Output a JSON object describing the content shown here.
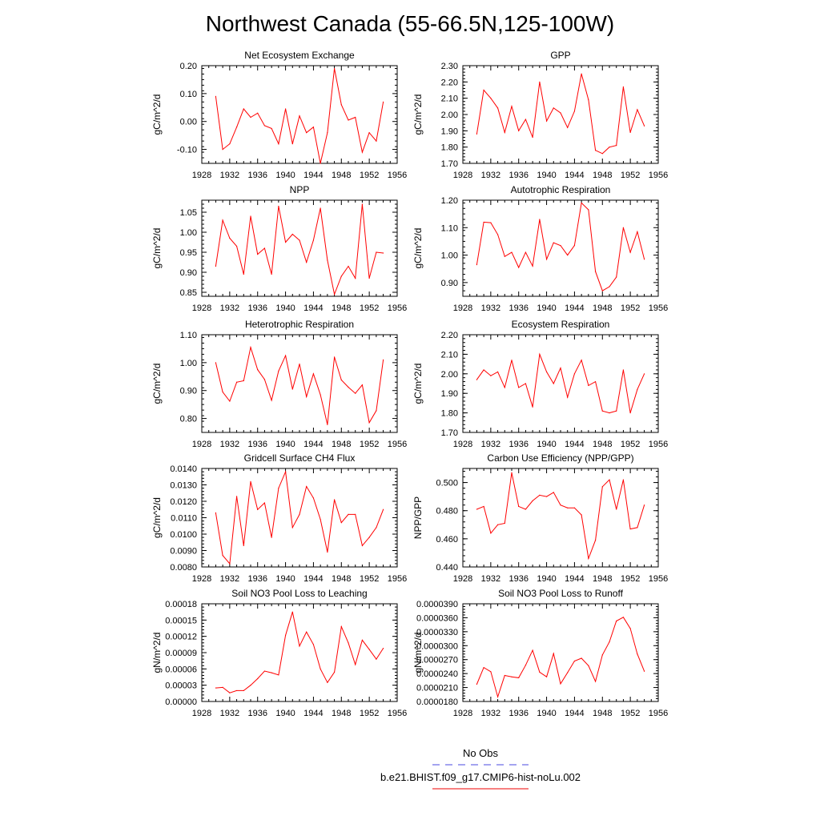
{
  "figure": {
    "title": "Northwest Canada (55-66.5N,125-100W)"
  },
  "legend": {
    "entries": [
      {
        "label": "No Obs",
        "color": "#4a4ae0",
        "dash": true
      },
      {
        "label": "b.e21.BHIST.f09_g17.CMIP6-hist-noLu.002",
        "color": "#ee0000",
        "dash": false
      }
    ]
  },
  "colors": {
    "series": "#ff0000"
  },
  "chart_data": [
    {
      "type": "line",
      "title": "Net Ecosystem Exchange",
      "ylabel": "gC/m^2/d",
      "xlim": [
        1928,
        1956
      ],
      "xticks": [
        1928,
        1932,
        1936,
        1940,
        1944,
        1948,
        1952,
        1956
      ],
      "ylim": [
        -0.15,
        0.2
      ],
      "yticks": [
        "-0.10",
        "0.00",
        "0.10",
        "0.20"
      ],
      "ytick_values": [
        -0.1,
        0.0,
        0.1,
        0.2
      ],
      "x": [
        1930,
        1931,
        1932,
        1933,
        1934,
        1935,
        1936,
        1937,
        1938,
        1939,
        1940,
        1941,
        1942,
        1943,
        1944,
        1945,
        1946,
        1947,
        1948,
        1949,
        1950,
        1951,
        1952,
        1953,
        1954
      ],
      "values": [
        0.09,
        -0.1,
        -0.08,
        -0.02,
        0.045,
        0.015,
        0.03,
        -0.015,
        -0.025,
        -0.08,
        0.045,
        -0.08,
        0.02,
        -0.04,
        -0.02,
        -0.15,
        -0.04,
        0.19,
        0.06,
        0.005,
        0.015,
        -0.11,
        -0.04,
        -0.07,
        0.07
      ]
    },
    {
      "type": "line",
      "title": "GPP",
      "ylabel": "gC/m^2/d",
      "xlim": [
        1928,
        1956
      ],
      "xticks": [
        1928,
        1932,
        1936,
        1940,
        1944,
        1948,
        1952,
        1956
      ],
      "ylim": [
        1.7,
        2.3
      ],
      "yticks": [
        "1.70",
        "1.80",
        "1.90",
        "2.00",
        "2.10",
        "2.20",
        "2.30"
      ],
      "ytick_values": [
        1.7,
        1.8,
        1.9,
        2.0,
        2.1,
        2.2,
        2.3
      ],
      "x": [
        1930,
        1931,
        1932,
        1933,
        1934,
        1935,
        1936,
        1937,
        1938,
        1939,
        1940,
        1941,
        1942,
        1943,
        1944,
        1945,
        1946,
        1947,
        1948,
        1949,
        1950,
        1951,
        1952,
        1953,
        1954
      ],
      "values": [
        1.88,
        2.15,
        2.1,
        2.04,
        1.89,
        2.05,
        1.9,
        1.97,
        1.86,
        2.2,
        1.96,
        2.04,
        2.01,
        1.92,
        2.02,
        2.25,
        2.09,
        1.78,
        1.76,
        1.8,
        1.81,
        2.17,
        1.89,
        2.03,
        1.93
      ]
    },
    {
      "type": "line",
      "title": "NPP",
      "ylabel": "gC/m^2/d",
      "xlim": [
        1928,
        1956
      ],
      "xticks": [
        1928,
        1932,
        1936,
        1940,
        1944,
        1948,
        1952,
        1956
      ],
      "ylim": [
        0.84,
        1.08
      ],
      "yticks": [
        "0.85",
        "0.90",
        "0.95",
        "1.00",
        "1.05"
      ],
      "ytick_values": [
        0.85,
        0.9,
        0.95,
        1.0,
        1.05
      ],
      "x": [
        1930,
        1931,
        1932,
        1933,
        1934,
        1935,
        1936,
        1937,
        1938,
        1939,
        1940,
        1941,
        1942,
        1943,
        1944,
        1945,
        1946,
        1947,
        1948,
        1949,
        1950,
        1951,
        1952,
        1953,
        1954
      ],
      "values": [
        0.915,
        1.03,
        0.985,
        0.965,
        0.895,
        1.04,
        0.945,
        0.96,
        0.895,
        1.065,
        0.975,
        0.995,
        0.98,
        0.925,
        0.98,
        1.06,
        0.93,
        0.845,
        0.89,
        0.915,
        0.885,
        1.07,
        0.885,
        0.95,
        0.948
      ]
    },
    {
      "type": "line",
      "title": "Autotrophic Respiration",
      "ylabel": "gC/m^2/d",
      "xlim": [
        1928,
        1956
      ],
      "xticks": [
        1928,
        1932,
        1936,
        1940,
        1944,
        1948,
        1952,
        1956
      ],
      "ylim": [
        0.85,
        1.2
      ],
      "yticks": [
        "0.90",
        "1.00",
        "1.10",
        "1.20"
      ],
      "ytick_values": [
        0.9,
        1.0,
        1.1,
        1.2
      ],
      "x": [
        1930,
        1931,
        1932,
        1933,
        1934,
        1935,
        1936,
        1937,
        1938,
        1939,
        1940,
        1941,
        1942,
        1943,
        1944,
        1945,
        1946,
        1947,
        1948,
        1949,
        1950,
        1951,
        1952,
        1953,
        1954
      ],
      "values": [
        0.965,
        1.12,
        1.118,
        1.075,
        0.995,
        1.01,
        0.955,
        1.01,
        0.96,
        1.13,
        0.985,
        1.045,
        1.035,
        1.0,
        1.035,
        1.19,
        1.165,
        0.94,
        0.87,
        0.885,
        0.92,
        1.1,
        1.01,
        1.085,
        0.985
      ]
    },
    {
      "type": "line",
      "title": "Heterotrophic Respiration",
      "ylabel": "gC/m^2/d",
      "xlim": [
        1928,
        1956
      ],
      "xticks": [
        1928,
        1932,
        1936,
        1940,
        1944,
        1948,
        1952,
        1956
      ],
      "ylim": [
        0.75,
        1.1
      ],
      "yticks": [
        "0.80",
        "0.90",
        "1.00",
        "1.10"
      ],
      "ytick_values": [
        0.8,
        0.9,
        1.0,
        1.1
      ],
      "x": [
        1930,
        1931,
        1932,
        1933,
        1934,
        1935,
        1936,
        1937,
        1938,
        1939,
        1940,
        1941,
        1942,
        1943,
        1944,
        1945,
        1946,
        1947,
        1948,
        1949,
        1950,
        1951,
        1952,
        1953,
        1954
      ],
      "values": [
        1.0,
        0.895,
        0.862,
        0.93,
        0.935,
        1.055,
        0.975,
        0.94,
        0.865,
        0.97,
        1.025,
        0.905,
        0.995,
        0.878,
        0.96,
        0.885,
        0.778,
        1.02,
        0.938,
        0.912,
        0.89,
        0.92,
        0.785,
        0.828,
        1.01
      ]
    },
    {
      "type": "line",
      "title": "Ecosystem Respiration",
      "ylabel": "gC/m^2/d",
      "xlim": [
        1928,
        1956
      ],
      "xticks": [
        1928,
        1932,
        1936,
        1940,
        1944,
        1948,
        1952,
        1956
      ],
      "ylim": [
        1.7,
        2.2
      ],
      "yticks": [
        "1.70",
        "1.80",
        "1.90",
        "2.00",
        "2.10",
        "2.20"
      ],
      "ytick_values": [
        1.7,
        1.8,
        1.9,
        2.0,
        2.1,
        2.2
      ],
      "x": [
        1930,
        1931,
        1932,
        1933,
        1934,
        1935,
        1936,
        1937,
        1938,
        1939,
        1940,
        1941,
        1942,
        1943,
        1944,
        1945,
        1946,
        1947,
        1948,
        1949,
        1950,
        1951,
        1952,
        1953,
        1954
      ],
      "values": [
        1.97,
        2.02,
        1.99,
        2.01,
        1.93,
        2.07,
        1.93,
        1.95,
        1.83,
        2.1,
        2.01,
        1.95,
        2.03,
        1.88,
        2.0,
        2.07,
        1.94,
        1.96,
        1.81,
        1.8,
        1.81,
        2.02,
        1.8,
        1.92,
        2.0
      ]
    },
    {
      "type": "line",
      "title": "Gridcell Surface CH4 Flux",
      "ylabel": "gC/m^2/d",
      "xlim": [
        1928,
        1956
      ],
      "xticks": [
        1928,
        1932,
        1936,
        1940,
        1944,
        1948,
        1952,
        1956
      ],
      "ylim": [
        0.008,
        0.014
      ],
      "yticks": [
        "0.0080",
        "0.0090",
        "0.0100",
        "0.0110",
        "0.0120",
        "0.0130",
        "0.0140"
      ],
      "ytick_values": [
        0.008,
        0.009,
        0.01,
        0.011,
        0.012,
        0.013,
        0.014
      ],
      "x": [
        1930,
        1931,
        1932,
        1933,
        1934,
        1935,
        1936,
        1937,
        1938,
        1939,
        1940,
        1941,
        1942,
        1943,
        1944,
        1945,
        1946,
        1947,
        1948,
        1949,
        1950,
        1951,
        1952,
        1953,
        1954
      ],
      "values": [
        0.0113,
        0.0087,
        0.0082,
        0.0123,
        0.0093,
        0.0132,
        0.0115,
        0.0119,
        0.0098,
        0.0128,
        0.0138,
        0.0104,
        0.0112,
        0.0129,
        0.0122,
        0.0109,
        0.0089,
        0.0121,
        0.0107,
        0.0112,
        0.0112,
        0.0093,
        0.0098,
        0.0104,
        0.0115
      ]
    },
    {
      "type": "line",
      "title": "Carbon Use Efficiency (NPP/GPP)",
      "ylabel": "NPP/GPP",
      "xlim": [
        1928,
        1956
      ],
      "xticks": [
        1928,
        1932,
        1936,
        1940,
        1944,
        1948,
        1952,
        1956
      ],
      "ylim": [
        0.44,
        0.51
      ],
      "yticks": [
        "0.440",
        "0.460",
        "0.480",
        "0.500"
      ],
      "ytick_values": [
        0.44,
        0.46,
        0.48,
        0.5
      ],
      "x": [
        1930,
        1931,
        1932,
        1933,
        1934,
        1935,
        1936,
        1937,
        1938,
        1939,
        1940,
        1941,
        1942,
        1943,
        1944,
        1945,
        1946,
        1947,
        1948,
        1949,
        1950,
        1951,
        1952,
        1953,
        1954
      ],
      "values": [
        0.481,
        0.483,
        0.464,
        0.47,
        0.471,
        0.507,
        0.483,
        0.481,
        0.487,
        0.491,
        0.49,
        0.493,
        0.484,
        0.482,
        0.482,
        0.477,
        0.446,
        0.459,
        0.497,
        0.502,
        0.481,
        0.502,
        0.467,
        0.468,
        0.484
      ]
    },
    {
      "type": "line",
      "title": "Soil NO3 Pool Loss to Leaching",
      "ylabel": "gN/m^2/d",
      "xlim": [
        1928,
        1956
      ],
      "xticks": [
        1928,
        1932,
        1936,
        1940,
        1944,
        1948,
        1952,
        1956
      ],
      "ylim": [
        0.0,
        0.00018
      ],
      "yticks": [
        "0.00000",
        "0.00003",
        "0.00006",
        "0.00009",
        "0.00012",
        "0.00015",
        "0.00018"
      ],
      "ytick_values": [
        0.0,
        3e-05,
        6e-05,
        9e-05,
        0.00012,
        0.00015,
        0.00018
      ],
      "x": [
        1930,
        1931,
        1932,
        1933,
        1934,
        1935,
        1936,
        1937,
        1938,
        1939,
        1940,
        1941,
        1942,
        1943,
        1944,
        1945,
        1946,
        1947,
        1948,
        1949,
        1950,
        1951,
        1952,
        1953,
        1954
      ],
      "values": [
        2.5e-05,
        2.6e-05,
        1.6e-05,
        2e-05,
        2e-05,
        3e-05,
        4.2e-05,
        5.6e-05,
        5.3e-05,
        4.9e-05,
        0.000122,
        0.000165,
        0.000102,
        0.000128,
        0.000105,
        6e-05,
        3.5e-05,
        5.4e-05,
        0.000138,
        0.000108,
        6.8e-05,
        0.000113,
        9.6e-05,
        7.8e-05,
        9.8e-05
      ]
    },
    {
      "type": "line",
      "title": "Soil NO3 Pool Loss to Runoff",
      "ylabel": "gN/m^2/d",
      "xlim": [
        1928,
        1956
      ],
      "xticks": [
        1928,
        1932,
        1936,
        1940,
        1944,
        1948,
        1952,
        1956
      ],
      "ylim": [
        1.8e-05,
        3.9e-05
      ],
      "yticks": [
        "0.0000180",
        "0.0000210",
        "0.0000240",
        "0.0000270",
        "0.0000300",
        "0.0000330",
        "0.0000360",
        "0.0000390"
      ],
      "ytick_values": [
        1.8e-05,
        2.1e-05,
        2.4e-05,
        2.7e-05,
        3e-05,
        3.3e-05,
        3.6e-05,
        3.9e-05
      ],
      "x": [
        1930,
        1931,
        1932,
        1933,
        1934,
        1935,
        1936,
        1937,
        1938,
        1939,
        1940,
        1941,
        1942,
        1943,
        1944,
        1945,
        1946,
        1947,
        1948,
        1949,
        1950,
        1951,
        1952,
        1953,
        1954
      ],
      "values": [
        2.17e-05,
        2.53e-05,
        2.44e-05,
        1.9e-05,
        2.36e-05,
        2.33e-05,
        2.31e-05,
        2.58e-05,
        2.9e-05,
        2.43e-05,
        2.33e-05,
        2.83e-05,
        2.18e-05,
        2.42e-05,
        2.67e-05,
        2.73e-05,
        2.57e-05,
        2.23e-05,
        2.8e-05,
        3.08e-05,
        3.53e-05,
        3.61e-05,
        3.37e-05,
        2.82e-05,
        2.45e-05
      ]
    }
  ]
}
